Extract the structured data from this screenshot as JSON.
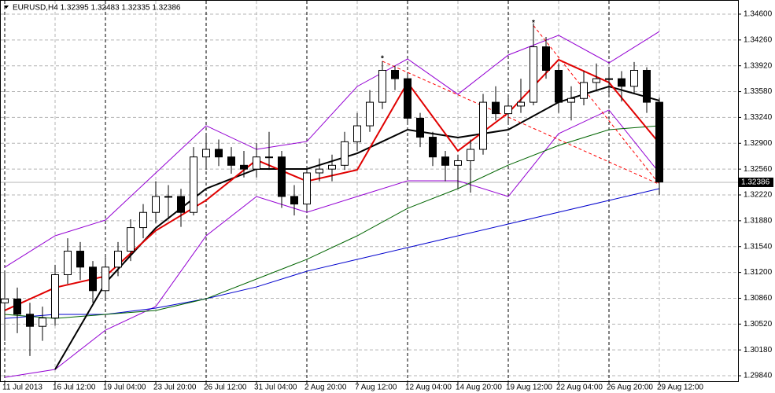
{
  "chart_data": {
    "type": "candlestick",
    "title": "EURUSD,H4  1.32395 1.32483 1.32335 1.32386",
    "categories": [
      "11 Jul 2013",
      null,
      null,
      null,
      "16 Jul 12:00",
      null,
      null,
      null,
      "19 Jul 04:00",
      null,
      null,
      null,
      "23 Jul 20:00",
      null,
      null,
      null,
      "26 Jul 12:00",
      null,
      null,
      null,
      "31 Jul 04:00",
      null,
      null,
      null,
      "2 Aug 20:00",
      null,
      null,
      null,
      "7 Aug 12:00",
      null,
      null,
      null,
      "12 Aug 04:00",
      null,
      null,
      null,
      "14 Aug 20:00",
      null,
      null,
      null,
      "19 Aug 12:00",
      null,
      null,
      null,
      "22 Aug 04:00",
      null,
      null,
      null,
      "26 Aug 20:00",
      null,
      null,
      null,
      "29 Aug 12:00"
    ],
    "open": [
      1.308,
      1.3085,
      1.3065,
      1.3049,
      1.306,
      1.3117,
      1.3148,
      1.3127,
      1.3096,
      1.3127,
      1.3148,
      1.3179,
      1.3199,
      1.322,
      1.322,
      1.3199,
      1.3272,
      1.3282,
      1.3272,
      1.3261,
      1.3256,
      1.3272,
      1.3272,
      1.322,
      1.321,
      1.3251,
      1.3256,
      1.3261,
      1.3292,
      1.3313,
      1.3344,
      1.3386,
      1.3375,
      1.3323,
      1.3298,
      1.3272,
      1.3261,
      1.3267,
      1.3282,
      1.3344,
      1.3329,
      1.3339,
      1.3344,
      1.3417,
      1.3386,
      1.3344,
      1.3349,
      1.337,
      1.3375,
      1.3375,
      1.3365,
      1.3386,
      1.3344
    ],
    "high": [
      1.312,
      1.31,
      1.308,
      1.3075,
      1.313,
      1.3165,
      1.316,
      1.3135,
      1.314,
      1.316,
      1.319,
      1.321,
      1.324,
      1.3235,
      1.323,
      1.3285,
      1.33,
      1.3295,
      1.3285,
      1.328,
      1.329,
      1.3305,
      1.328,
      1.3235,
      1.326,
      1.327,
      1.3275,
      1.3305,
      1.333,
      1.336,
      1.3398,
      1.3392,
      1.338,
      1.333,
      1.3305,
      1.328,
      1.3275,
      1.3295,
      1.3355,
      1.3365,
      1.335,
      1.3375,
      1.3448,
      1.343,
      1.3395,
      1.3365,
      1.3385,
      1.3395,
      1.339,
      1.3385,
      1.3397,
      1.339,
      1.335
    ],
    "low": [
      1.303,
      1.304,
      1.301,
      1.303,
      1.305,
      1.3105,
      1.311,
      1.308,
      1.3085,
      1.3115,
      1.3135,
      1.3165,
      1.3185,
      1.319,
      1.318,
      1.3195,
      1.3255,
      1.326,
      1.325,
      1.3245,
      1.3245,
      1.3255,
      1.3205,
      1.3195,
      1.32,
      1.324,
      1.324,
      1.3255,
      1.328,
      1.3305,
      1.3335,
      1.336,
      1.3315,
      1.3285,
      1.326,
      1.324,
      1.323,
      1.3225,
      1.3275,
      1.332,
      1.3315,
      1.333,
      1.334,
      1.3375,
      1.333,
      1.332,
      1.334,
      1.336,
      1.3355,
      1.3345,
      1.3355,
      1.333,
      1.3222
    ],
    "close": [
      1.3085,
      1.3065,
      1.3049,
      1.306,
      1.3117,
      1.3148,
      1.3127,
      1.3096,
      1.3127,
      1.3148,
      1.3179,
      1.3199,
      1.322,
      1.322,
      1.3199,
      1.3272,
      1.3282,
      1.3272,
      1.3261,
      1.3256,
      1.3272,
      1.3272,
      1.322,
      1.321,
      1.3251,
      1.3256,
      1.3261,
      1.3292,
      1.3313,
      1.3344,
      1.3386,
      1.3375,
      1.3323,
      1.3298,
      1.3272,
      1.3261,
      1.3267,
      1.3282,
      1.3344,
      1.3329,
      1.3339,
      1.3344,
      1.3417,
      1.3386,
      1.3344,
      1.3349,
      1.337,
      1.3375,
      1.3375,
      1.3365,
      1.3386,
      1.3344,
      1.3239
    ],
    "indicators": {
      "x": [
        0,
        4,
        8,
        12,
        16,
        20,
        24,
        28,
        32,
        36,
        40,
        44,
        48,
        52
      ],
      "series": [
        {
          "color": "#9400d3",
          "values": [
            1.31268,
            1.31682,
            1.31889,
            1.3251,
            1.33131,
            1.3282,
            1.32924,
            1.33648,
            1.3401,
            1.33545,
            1.34062,
            1.34321,
            1.33958,
            1.34372
          ]
        },
        {
          "color": "#9400d3",
          "values": [
            1.29819,
            1.29923,
            1.3044,
            1.30751,
            1.31682,
            1.32199,
            1.31992,
            1.32199,
            1.32406,
            1.32406,
            1.32199,
            1.33027,
            1.33338,
            1.3251
          ]
        },
        {
          "color": "#0000cd",
          "values": [
            1.30595,
            1.30647,
            1.30647,
            1.3073,
            1.30854,
            1.31009,
            1.31216,
            1.31372,
            1.31527,
            1.31682,
            1.31837,
            1.31992,
            1.32148,
            1.32303
          ]
        },
        {
          "color": "#006400",
          "values": [
            1.30647,
            1.30595,
            1.30647,
            1.30699,
            1.30854,
            1.31113,
            1.31372,
            1.31682,
            1.32044,
            1.32303,
            1.32613,
            1.32872,
            1.33079,
            1.33131
          ]
        },
        {
          "color": "#000000",
          "values": [
            null,
            1.29923,
            1.31061,
            1.31785,
            1.32303,
            1.32562,
            1.32562,
            1.32768,
            1.33079,
            1.32975,
            1.33079,
            1.33441,
            1.33648,
            1.33462
          ]
        },
        {
          "color": "#e00000",
          "values": [
            1.307,
            1.31,
            1.3115,
            1.3175,
            1.3215,
            1.3268,
            1.324,
            1.3255,
            1.337,
            1.328,
            1.333,
            1.34,
            1.337,
            1.329
          ]
        }
      ]
    },
    "trendlines": {
      "color": "#ff0000",
      "lines": [
        {
          "x": [
            30,
            52
          ],
          "values": [
            1.3398,
            1.3236
          ]
        },
        {
          "x": [
            42,
            52
          ],
          "values": [
            1.3445,
            1.3236
          ]
        }
      ]
    },
    "last_price": {
      "value": 1.32386,
      "label": "1.32386"
    },
    "ylim": [
      1.29768,
      1.34786
    ],
    "yticks": [
      {
        "value": 1.346,
        "label": "1.34600"
      },
      {
        "value": 1.3426,
        "label": "1.34260"
      },
      {
        "value": 1.3392,
        "label": "1.33920"
      },
      {
        "value": 1.3358,
        "label": "1.33580"
      },
      {
        "value": 1.3324,
        "label": "1.33240"
      },
      {
        "value": 1.329,
        "label": "1.32900"
      },
      {
        "value": 1.3256,
        "label": "1.32560"
      },
      {
        "value": 1.3222,
        "label": "1.32220"
      },
      {
        "value": 1.3188,
        "label": "1.31880"
      },
      {
        "value": 1.3154,
        "label": "1.31540"
      },
      {
        "value": 1.312,
        "label": "1.31200"
      },
      {
        "value": 1.3086,
        "label": "1.30860"
      },
      {
        "value": 1.3052,
        "label": "1.30520"
      },
      {
        "value": 1.3018,
        "label": "1.30180"
      },
      {
        "value": 1.2984,
        "label": "1.29840"
      }
    ],
    "grid": true,
    "up_color": "#ffffff",
    "down_color": "#000000"
  }
}
